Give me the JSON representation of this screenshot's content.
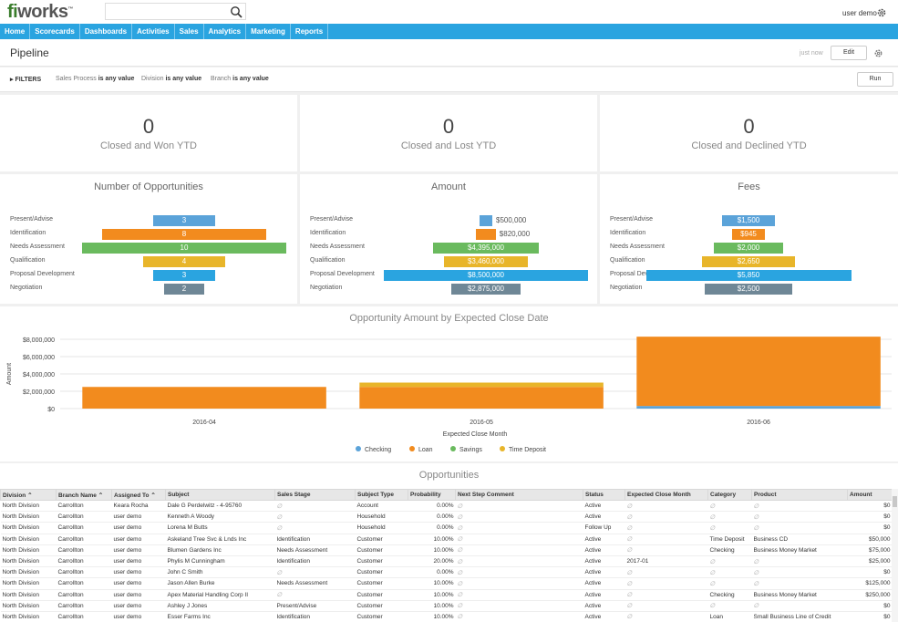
{
  "app": {
    "logo_a": "fi",
    "logo_b": "works",
    "logo_tm": "™",
    "user": "user demo"
  },
  "nav": [
    "Home",
    "Scorecards",
    "Dashboards",
    "Activities",
    "Sales",
    "Analytics",
    "Marketing",
    "Reports"
  ],
  "page": {
    "title": "Pipeline",
    "updated": "just now",
    "edit_label": "Edit",
    "run_label": "Run"
  },
  "filters": {
    "label": "FILTERS",
    "items": [
      {
        "field": "Sales Process",
        "cond": "is any value"
      },
      {
        "field": "Division",
        "cond": "is any value"
      },
      {
        "field": "Branch",
        "cond": "is any value"
      }
    ]
  },
  "kpis": [
    {
      "value": "0",
      "label": "Closed and Won YTD"
    },
    {
      "value": "0",
      "label": "Closed and Lost YTD"
    },
    {
      "value": "0",
      "label": "Closed and Declined YTD"
    }
  ],
  "funnel_stages": [
    "Present/Advise",
    "Identification",
    "Needs Assessment",
    "Qualification",
    "Proposal Development",
    "Negotiation"
  ],
  "stage_colors": [
    "#5ba3d9",
    "#f28b1e",
    "#6aba5e",
    "#e8b52a",
    "#2aa4e0",
    "#6f8796"
  ],
  "funnels": [
    {
      "title": "Number of Opportunities",
      "values": [
        3,
        8,
        10,
        4,
        3,
        2
      ],
      "labels": [
        "3",
        "8",
        "10",
        "4",
        "3",
        "2"
      ]
    },
    {
      "title": "Amount",
      "values": [
        500000,
        820000,
        4395000,
        3460000,
        8500000,
        2875000
      ],
      "labels": [
        "$500,000",
        "$820,000",
        "$4,395,000",
        "$3,460,000",
        "$8,500,000",
        "$2,875,000"
      ]
    },
    {
      "title": "Fees",
      "values": [
        1500,
        945,
        2000,
        2650,
        5850,
        2500
      ],
      "labels": [
        "$1,500",
        "$945",
        "$2,000",
        "$2,650",
        "$5,850",
        "$2,500"
      ]
    }
  ],
  "chart_data": {
    "type": "bar",
    "stacked": true,
    "title": "Opportunity Amount by Expected Close Date",
    "xlabel": "Expected Close Month",
    "ylabel": "Amount",
    "categories": [
      "2016-04",
      "2016-05",
      "2016-06"
    ],
    "ylim": [
      0,
      8000000
    ],
    "yticks": [
      "$0",
      "$2,000,000",
      "$4,000,000",
      "$6,000,000",
      "$8,000,000"
    ],
    "series": [
      {
        "name": "Checking",
        "color": "#5ba3d9",
        "values": [
          0,
          0,
          300000
        ]
      },
      {
        "name": "Loan",
        "color": "#f28b1e",
        "values": [
          2500000,
          2500000,
          8000000
        ]
      },
      {
        "name": "Savings",
        "color": "#6aba5e",
        "values": [
          0,
          0,
          0
        ]
      },
      {
        "name": "Time Deposit",
        "color": "#e8b52a",
        "values": [
          0,
          500000,
          0
        ]
      }
    ],
    "legend": "bottom",
    "grid": true
  },
  "opportunities": {
    "title": "Opportunities",
    "columns": [
      "Division",
      "Branch Name",
      "Assigned To",
      "Subject",
      "Sales Stage",
      "Subject Type",
      "Probability",
      "Next Step Comment",
      "Status",
      "Expected Close Month",
      "Category",
      "Product",
      "Amount"
    ],
    "sortable": [
      true,
      true,
      true,
      false,
      false,
      false,
      false,
      false,
      false,
      false,
      false,
      false,
      false
    ],
    "rows": [
      [
        "North Division",
        "Carrollton",
        "Keara Rocha",
        "Dale G Perdelwitz - 4-95760",
        "∅",
        "Account",
        "0.00%",
        "∅",
        "Active",
        "∅",
        "∅",
        "∅",
        "$0"
      ],
      [
        "North Division",
        "Carrollton",
        "user demo",
        "Kenneth A Woody",
        "∅",
        "Household",
        "0.00%",
        "∅",
        "Active",
        "∅",
        "∅",
        "∅",
        "$0"
      ],
      [
        "North Division",
        "Carrollton",
        "user demo",
        "Lorena M Butts",
        "∅",
        "Household",
        "0.00%",
        "∅",
        "Follow Up",
        "∅",
        "∅",
        "∅",
        "$0"
      ],
      [
        "North Division",
        "Carrollton",
        "user demo",
        "Askeland Tree Svc & Lnds Inc",
        "Identification",
        "Customer",
        "10.00%",
        "∅",
        "Active",
        "∅",
        "Time Deposit",
        "Business CD",
        "$50,000"
      ],
      [
        "North Division",
        "Carrollton",
        "user demo",
        "Blumen Gardens Inc",
        "Needs Assessment",
        "Customer",
        "10.00%",
        "∅",
        "Active",
        "∅",
        "Checking",
        "Business Money Market",
        "$75,000"
      ],
      [
        "North Division",
        "Carrollton",
        "user demo",
        "Phylis M Cunningham",
        "Identification",
        "Customer",
        "20.00%",
        "∅",
        "Active",
        "2017-01",
        "∅",
        "∅",
        "$25,000"
      ],
      [
        "North Division",
        "Carrollton",
        "user demo",
        "John C Smith",
        "∅",
        "Customer",
        "0.00%",
        "∅",
        "Active",
        "∅",
        "∅",
        "∅",
        "$0"
      ],
      [
        "North Division",
        "Carrollton",
        "user demo",
        "Jason Allen Burke",
        "Needs Assessment",
        "Customer",
        "10.00%",
        "∅",
        "Active",
        "∅",
        "∅",
        "∅",
        "$125,000"
      ],
      [
        "North Division",
        "Carrollton",
        "user demo",
        "Apex Material Handling Corp II",
        "∅",
        "Customer",
        "10.00%",
        "∅",
        "Active",
        "∅",
        "Checking",
        "Business Money Market",
        "$250,000"
      ],
      [
        "North Division",
        "Carrollton",
        "user demo",
        "Ashley J Jones",
        "Present/Advise",
        "Customer",
        "10.00%",
        "∅",
        "Active",
        "∅",
        "∅",
        "∅",
        "$0"
      ],
      [
        "North Division",
        "Carrollton",
        "user demo",
        "Esser Farms Inc",
        "Identification",
        "Customer",
        "10.00%",
        "∅",
        "Active",
        "∅",
        "Loan",
        "Small Business Line of Credit",
        "$0"
      ]
    ]
  }
}
